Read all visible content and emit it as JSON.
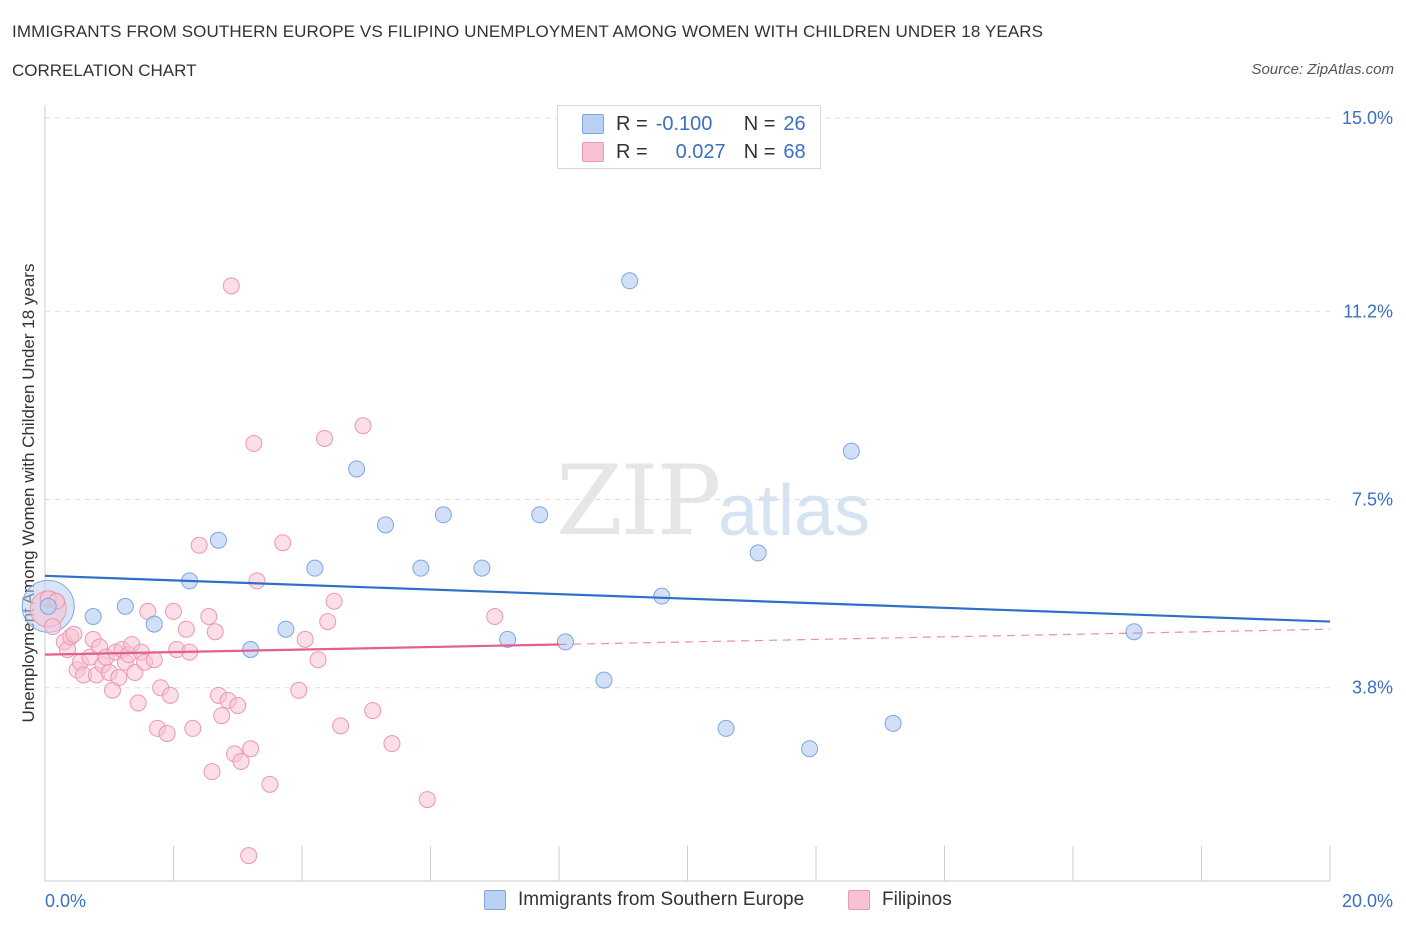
{
  "header": {
    "title": "IMMIGRANTS FROM SOUTHERN EUROPE VS FILIPINO UNEMPLOYMENT AMONG WOMEN WITH CHILDREN UNDER 18 YEARS",
    "subtitle": "CORRELATION CHART",
    "source": "Source: ZipAtlas.com"
  },
  "watermark": {
    "zip": "ZIP",
    "atlas": "atlas"
  },
  "legend": {
    "rows": [
      {
        "r_label": "R =",
        "r_value": "-0.100",
        "n_label": "N =",
        "n_value": "26"
      },
      {
        "r_label": "R =",
        "r_value": "0.027",
        "n_label": "N =",
        "n_value": "68"
      }
    ]
  },
  "colors": {
    "blue_fill": "#b8d0f2",
    "blue_stroke": "#7ea6e0",
    "blue_line": "#2f6fc8",
    "pink_fill": "#f7c3d3",
    "pink_stroke": "#eb97b3",
    "pink_line": "#e0608e",
    "axis_label": "#3a6fc4",
    "grid": "#dddddd"
  },
  "chart_data": {
    "type": "scatter",
    "title": "IMMIGRANTS FROM SOUTHERN EUROPE VS FILIPINO UNEMPLOYMENT AMONG WOMEN WITH CHILDREN UNDER 18 YEARS",
    "xlabel": "",
    "ylabel": "Unemployment Among Women with Children Under 18 years",
    "xlim": [
      0,
      20
    ],
    "ylim": [
      0,
      15
    ],
    "x_tick_labels": [
      "0.0%",
      "20.0%"
    ],
    "y_ticks": [
      3.8,
      7.5,
      11.2,
      15.0
    ],
    "y_tick_labels": [
      "3.8%",
      "7.5%",
      "11.2%",
      "15.0%"
    ],
    "grid": true,
    "series": [
      {
        "name": "Immigrants from Southern Europe",
        "r": -0.1,
        "n": 26,
        "trend": [
          [
            0,
            6.0
          ],
          [
            20,
            5.1
          ]
        ],
        "points": [
          [
            0.05,
            5.4
          ],
          [
            0.75,
            5.2
          ],
          [
            1.25,
            5.4
          ],
          [
            1.7,
            5.05
          ],
          [
            2.25,
            5.9
          ],
          [
            2.7,
            6.7
          ],
          [
            3.2,
            4.55
          ],
          [
            3.75,
            4.95
          ],
          [
            4.2,
            6.15
          ],
          [
            4.85,
            8.1
          ],
          [
            5.3,
            7.0
          ],
          [
            5.85,
            6.15
          ],
          [
            6.2,
            7.2
          ],
          [
            6.8,
            6.15
          ],
          [
            7.2,
            4.75
          ],
          [
            7.7,
            7.2
          ],
          [
            8.1,
            4.7
          ],
          [
            8.7,
            3.95
          ],
          [
            9.1,
            11.8
          ],
          [
            9.6,
            5.6
          ],
          [
            10.6,
            3.0
          ],
          [
            11.1,
            6.45
          ],
          [
            11.9,
            2.6
          ],
          [
            12.55,
            8.45
          ],
          [
            13.2,
            3.1
          ],
          [
            16.95,
            4.9
          ]
        ]
      },
      {
        "name": "Filipinos",
        "r": 0.027,
        "n": 68,
        "trend": [
          [
            0,
            4.45
          ],
          [
            8.0,
            4.65
          ]
        ],
        "trend_extension": [
          [
            8.0,
            4.65
          ],
          [
            20,
            4.95
          ]
        ],
        "points": [
          [
            0.05,
            5.55
          ],
          [
            0.12,
            5.0
          ],
          [
            0.18,
            5.5
          ],
          [
            0.3,
            4.7
          ],
          [
            0.35,
            4.55
          ],
          [
            0.4,
            4.8
          ],
          [
            0.45,
            4.85
          ],
          [
            0.5,
            4.15
          ],
          [
            0.55,
            4.3
          ],
          [
            0.6,
            4.05
          ],
          [
            0.7,
            4.4
          ],
          [
            0.75,
            4.75
          ],
          [
            0.8,
            4.05
          ],
          [
            0.85,
            4.6
          ],
          [
            0.9,
            4.25
          ],
          [
            0.95,
            4.4
          ],
          [
            1.0,
            4.1
          ],
          [
            1.05,
            3.75
          ],
          [
            1.1,
            4.5
          ],
          [
            1.15,
            4.0
          ],
          [
            1.2,
            4.55
          ],
          [
            1.25,
            4.3
          ],
          [
            1.3,
            4.45
          ],
          [
            1.35,
            4.65
          ],
          [
            1.4,
            4.1
          ],
          [
            1.45,
            3.5
          ],
          [
            1.5,
            4.5
          ],
          [
            1.55,
            4.3
          ],
          [
            1.6,
            5.3
          ],
          [
            1.7,
            4.35
          ],
          [
            1.75,
            3.0
          ],
          [
            1.8,
            3.8
          ],
          [
            1.9,
            2.9
          ],
          [
            1.95,
            3.65
          ],
          [
            2.0,
            5.3
          ],
          [
            2.05,
            4.55
          ],
          [
            2.2,
            4.95
          ],
          [
            2.25,
            4.5
          ],
          [
            2.3,
            3.0
          ],
          [
            2.4,
            6.6
          ],
          [
            2.55,
            5.2
          ],
          [
            2.6,
            2.15
          ],
          [
            2.65,
            4.9
          ],
          [
            2.7,
            3.65
          ],
          [
            2.75,
            3.25
          ],
          [
            2.85,
            3.55
          ],
          [
            2.9,
            11.7
          ],
          [
            2.95,
            2.5
          ],
          [
            3.05,
            2.35
          ],
          [
            3.0,
            3.45
          ],
          [
            3.2,
            2.6
          ],
          [
            3.25,
            8.6
          ],
          [
            3.3,
            5.9
          ],
          [
            3.5,
            1.9
          ],
          [
            3.7,
            6.65
          ],
          [
            3.95,
            3.75
          ],
          [
            4.05,
            4.75
          ],
          [
            4.25,
            4.35
          ],
          [
            4.35,
            8.7
          ],
          [
            4.4,
            5.1
          ],
          [
            4.5,
            5.5
          ],
          [
            4.6,
            3.05
          ],
          [
            4.95,
            8.95
          ],
          [
            5.1,
            3.35
          ],
          [
            5.4,
            2.7
          ],
          [
            5.95,
            1.6
          ],
          [
            7.0,
            5.2
          ],
          [
            3.17,
            0.5
          ]
        ]
      }
    ]
  },
  "bottom_legend": {
    "items": [
      {
        "label": "Immigrants from Southern Europe"
      },
      {
        "label": "Filipinos"
      }
    ]
  }
}
